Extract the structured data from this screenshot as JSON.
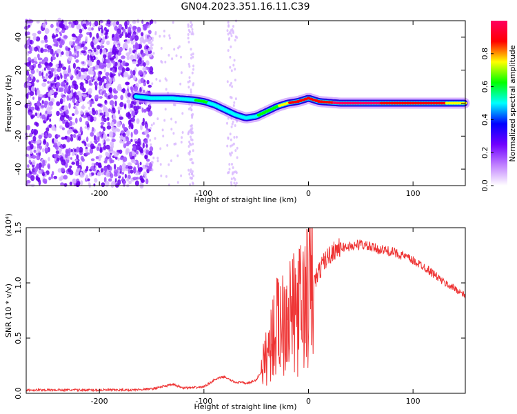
{
  "title": "GN04.2023.351.16.11.C39",
  "chart_data": [
    {
      "type": "heatmap",
      "xlabel": "Height of straight line (km)",
      "ylabel": "Frequency (Hz)",
      "xlim": [
        -270,
        150
      ],
      "ylim": [
        -50,
        50
      ],
      "x_ticks": [
        -200,
        -100,
        0,
        100
      ],
      "y_ticks": [
        -40,
        -20,
        0,
        20,
        40
      ],
      "colorbar": {
        "label": "Normalized spectral amplitude",
        "range": [
          0,
          1
        ],
        "ticks": [
          "0.0",
          "0.2",
          "0.4",
          "0.6",
          "0.8"
        ],
        "tick_values": [
          0,
          0.2,
          0.4,
          0.6,
          0.8
        ],
        "colors": [
          "#ffffff",
          "#c080ff",
          "#7000ff",
          "#0000ff",
          "#00ffff",
          "#00ff00",
          "#ffff00",
          "#ff0000",
          "#ff0060"
        ]
      },
      "noise_region_x": [
        -270,
        -160
      ],
      "ridge": {
        "x": [
          -165,
          -150,
          -130,
          -110,
          -100,
          -90,
          -80,
          -70,
          -60,
          -50,
          -40,
          -30,
          -20,
          -10,
          0,
          10,
          30,
          60,
          90,
          120,
          150
        ],
        "frequency": [
          4,
          3,
          3,
          2,
          1,
          -1,
          -4,
          -7,
          -9,
          -8,
          -5,
          -2,
          0,
          1,
          3,
          1,
          0,
          0,
          0,
          0,
          0
        ],
        "amplitude": [
          0.5,
          0.5,
          0.5,
          0.55,
          0.6,
          0.5,
          0.45,
          0.45,
          0.5,
          0.55,
          0.6,
          0.65,
          0.8,
          0.85,
          0.85,
          0.9,
          0.95,
          0.95,
          0.9,
          0.85,
          0.75
        ]
      }
    },
    {
      "type": "line",
      "xlabel": "Height of straight line (km)",
      "ylabel": "SNR (10 * v/v)",
      "y_scale_label": "(x10⁴)",
      "xlim": [
        -270,
        150
      ],
      "ylim": [
        0,
        1.5
      ],
      "x_ticks": [
        -200,
        -100,
        0,
        100
      ],
      "y_ticks": [
        0,
        0.5,
        1.0,
        1.5
      ],
      "y_tick_labels": [
        "0.0",
        "0.5",
        "1.0",
        "1.5"
      ],
      "color": "#ee3333",
      "series": [
        {
          "x": [
            -270,
            -250,
            -230,
            -210,
            -190,
            -170,
            -150,
            -140,
            -130,
            -120,
            -110,
            -100,
            -90,
            -85,
            -80,
            -75,
            -70,
            -65,
            -60,
            -55,
            -50,
            -45,
            -40,
            -35,
            -30,
            -25,
            -20,
            -15,
            -10,
            -5,
            0,
            5,
            10,
            15,
            20,
            25,
            30,
            40,
            50,
            60,
            70,
            80,
            90,
            100,
            110,
            120,
            130,
            140,
            150
          ],
          "values": [
            0.03,
            0.03,
            0.03,
            0.03,
            0.03,
            0.03,
            0.04,
            0.06,
            0.08,
            0.05,
            0.05,
            0.06,
            0.12,
            0.14,
            0.15,
            0.12,
            0.1,
            0.1,
            0.09,
            0.1,
            0.12,
            0.2,
            0.35,
            0.5,
            0.6,
            0.7,
            0.8,
            0.7,
            0.75,
            0.8,
            0.9,
            1.0,
            1.1,
            1.2,
            1.25,
            1.3,
            1.32,
            1.33,
            1.35,
            1.32,
            1.3,
            1.28,
            1.25,
            1.2,
            1.15,
            1.08,
            1.0,
            0.95,
            0.88
          ]
        }
      ]
    }
  ]
}
